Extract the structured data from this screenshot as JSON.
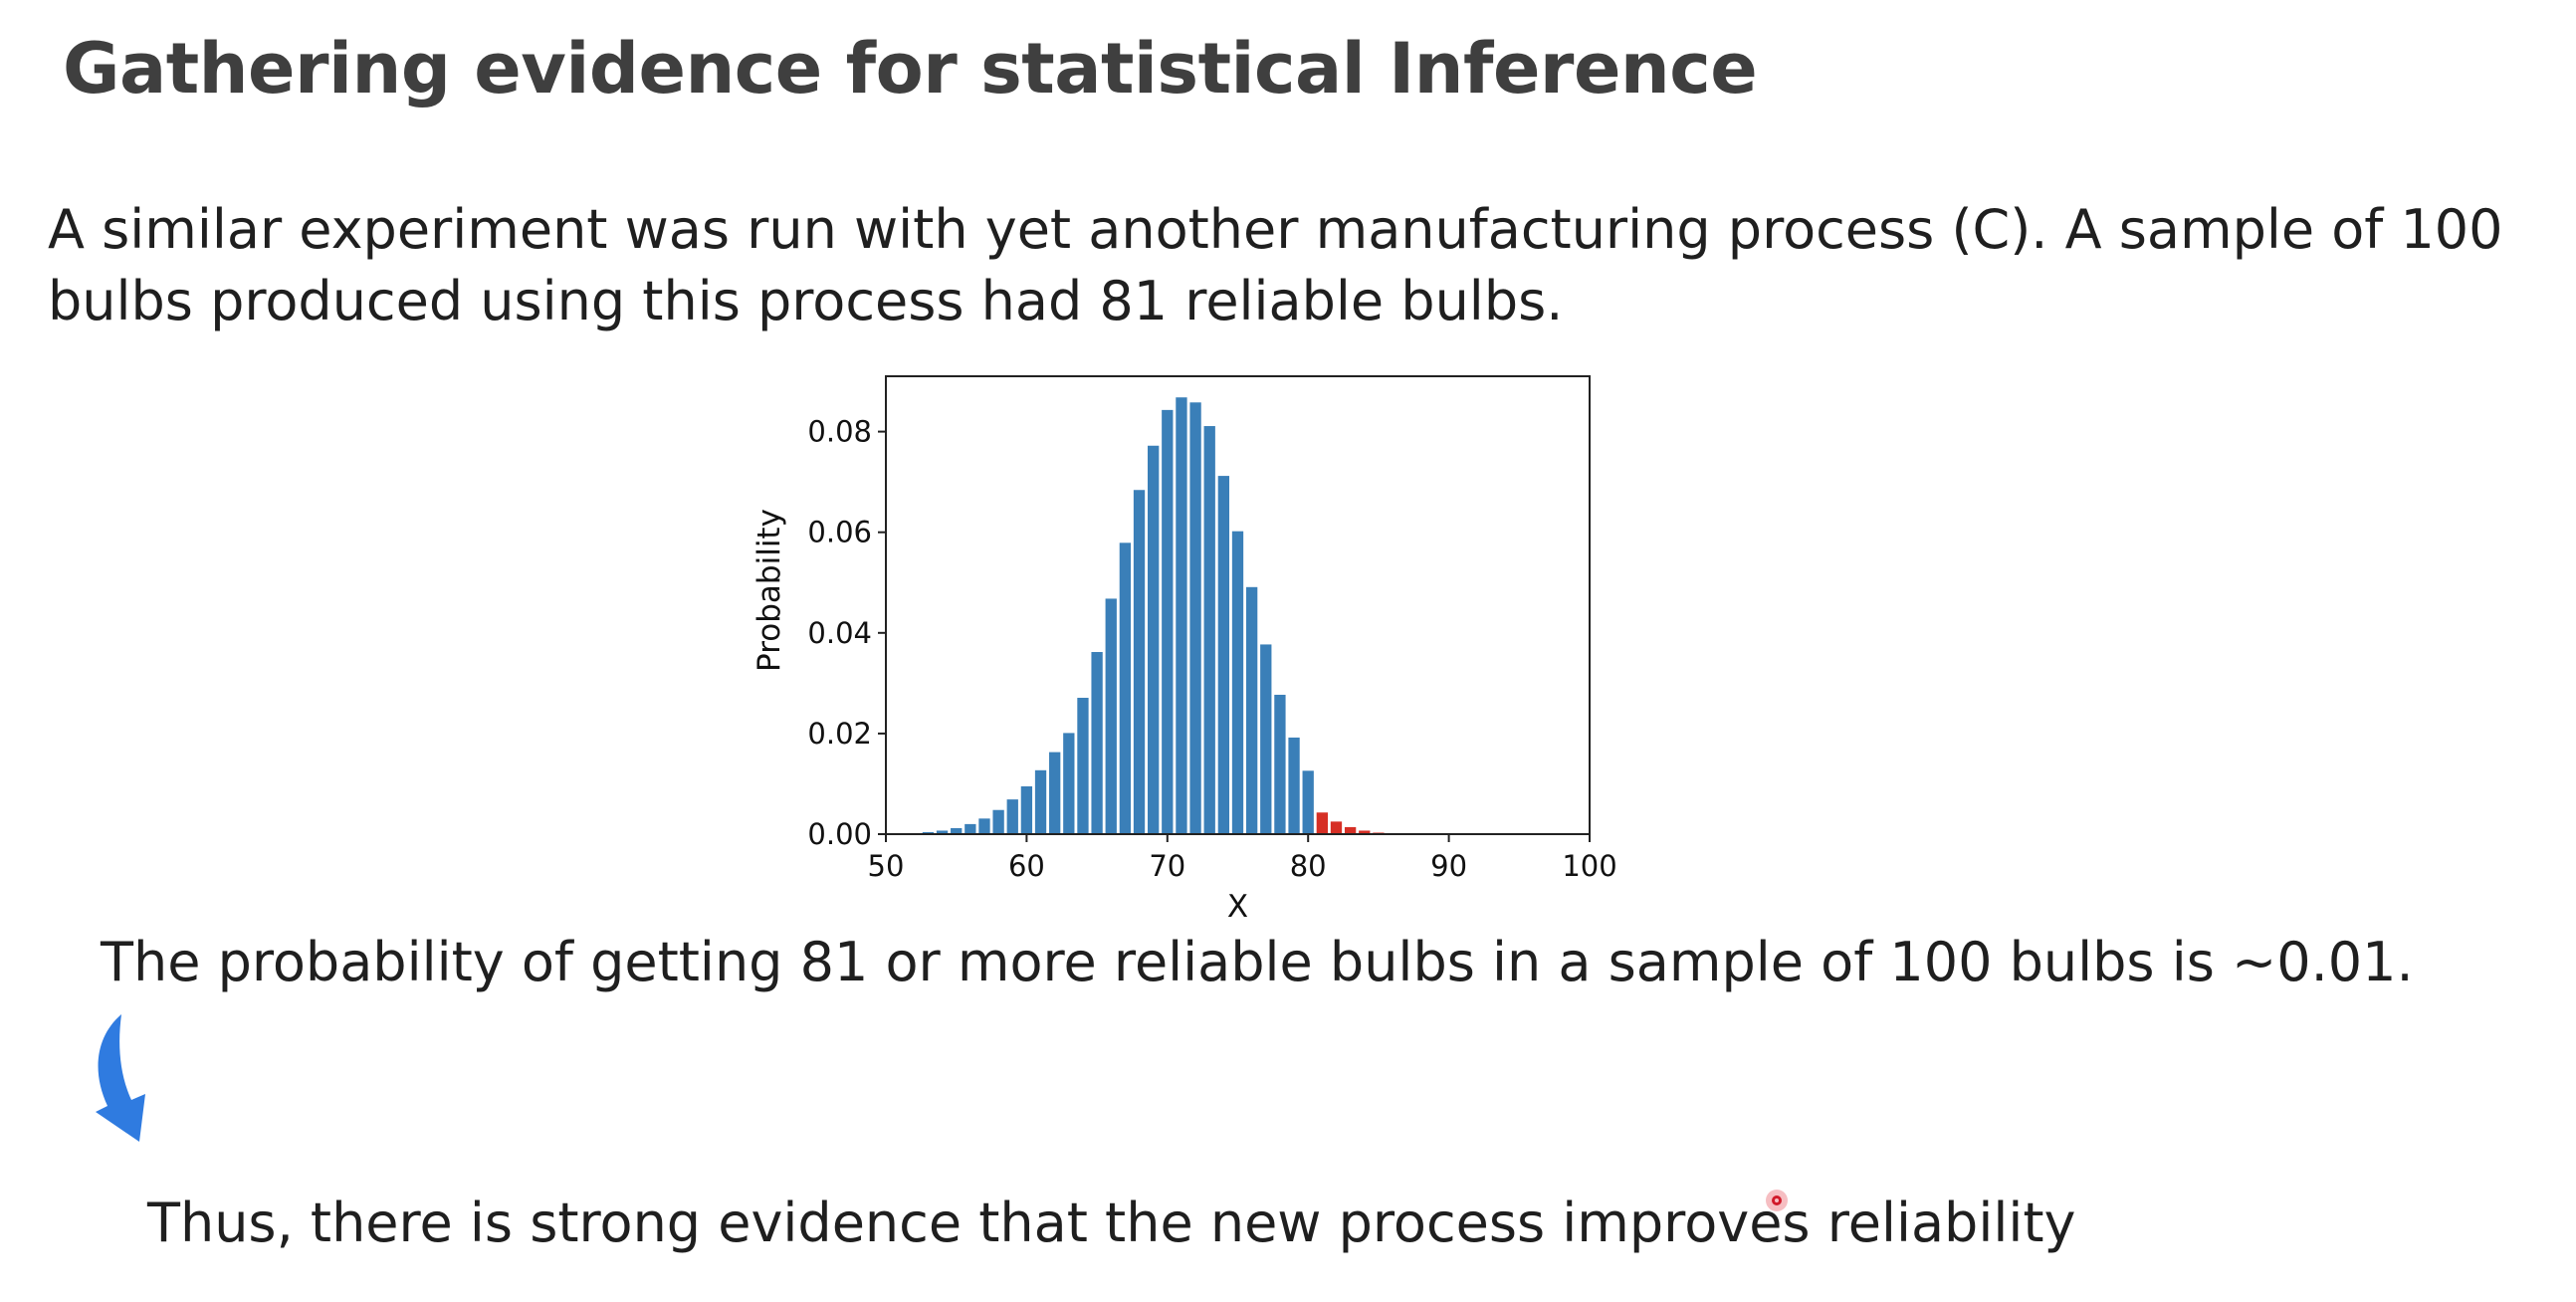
{
  "slide": {
    "title": "Gathering evidence for statistical Inference",
    "intro_line1": "A similar experiment was run with yet another manufacturing process (C). A sample of 100",
    "intro_line2": "bulbs produced using this process had 81 reliable bulbs.",
    "probability_statement": "The probability of getting 81 or more reliable bulbs in a sample of 100 bulbs is ~0.01.",
    "conclusion": "Thus, there is strong evidence that the new process improves reliability"
  },
  "icons": {
    "arrow": "curved-down-arrow-icon",
    "cursor": "pointer-cursor-icon"
  },
  "colors": {
    "bar_main": "#3a7fb8",
    "bar_tail": "#d62f25",
    "arrow": "#2f7be0"
  },
  "chart_data": {
    "type": "bar",
    "title": "",
    "xlabel": "X",
    "ylabel": "Probability",
    "xlim": [
      50,
      100
    ],
    "ylim": [
      0,
      0.091
    ],
    "xticks": [
      "50",
      "60",
      "70",
      "80",
      "90",
      "100"
    ],
    "yticks": [
      "0.00",
      "0.02",
      "0.04",
      "0.06",
      "0.08"
    ],
    "grid": false,
    "highlight_from": 81,
    "x": [
      52,
      53,
      54,
      55,
      56,
      57,
      58,
      59,
      60,
      61,
      62,
      63,
      64,
      65,
      66,
      67,
      68,
      69,
      70,
      71,
      72,
      73,
      74,
      75,
      76,
      77,
      78,
      79,
      80,
      81,
      82,
      83,
      84,
      85,
      86,
      87
    ],
    "values": [
      0.0002,
      0.0004,
      0.0007,
      0.0012,
      0.002,
      0.0031,
      0.0048,
      0.0069,
      0.0095,
      0.0127,
      0.0163,
      0.0201,
      0.0271,
      0.0362,
      0.0468,
      0.0579,
      0.0684,
      0.0772,
      0.0843,
      0.0868,
      0.0858,
      0.0811,
      0.0712,
      0.0602,
      0.0491,
      0.0377,
      0.0277,
      0.0192,
      0.0126,
      0.0043,
      0.0025,
      0.0014,
      0.0007,
      0.0003,
      0.0002,
      0.0001
    ]
  }
}
